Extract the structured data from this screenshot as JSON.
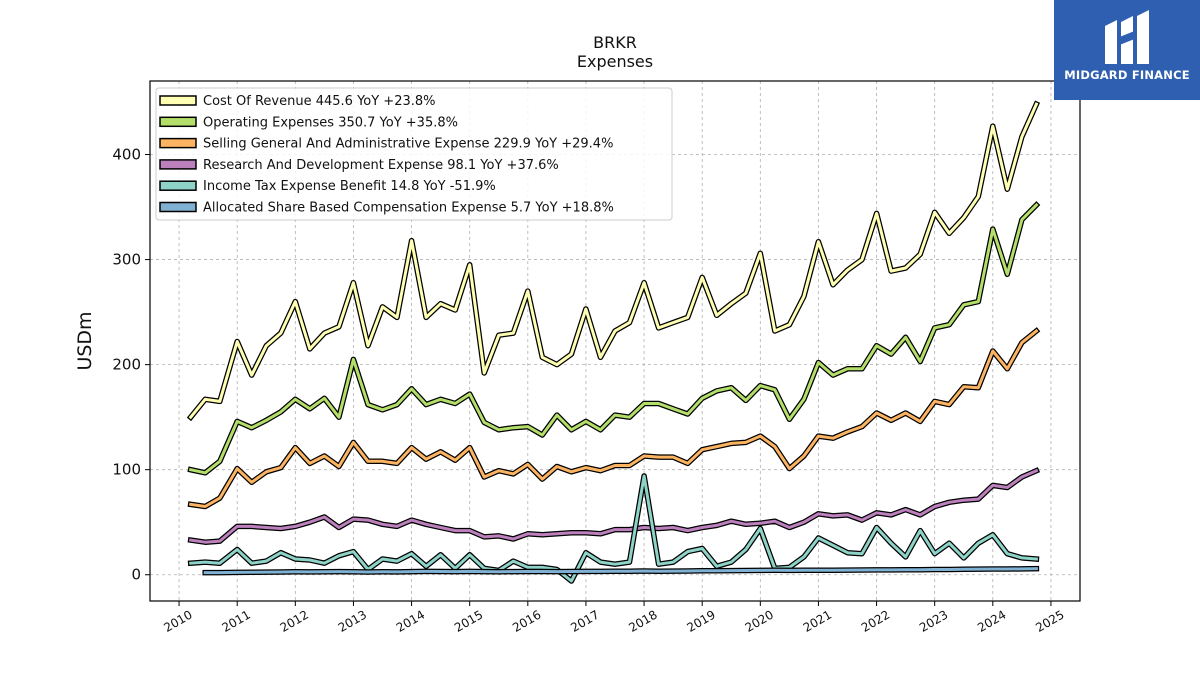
{
  "brand": {
    "name": "MIDGARD FINANCE",
    "color": "#2f5fb0"
  },
  "chart_data": {
    "type": "line",
    "title": "BRKR",
    "subtitle": "Expenses",
    "ylabel": "USDm",
    "xlabel": "",
    "xlim": [
      2009.5,
      2025.5
    ],
    "ylim": [
      -25,
      470
    ],
    "x_ticks": [
      "2010",
      "2011",
      "2012",
      "2013",
      "2014",
      "2015",
      "2016",
      "2017",
      "2018",
      "2019",
      "2020",
      "2021",
      "2022",
      "2023",
      "2024",
      "2025"
    ],
    "y_ticks": [
      "0",
      "100",
      "200",
      "300",
      "400"
    ],
    "grid": true,
    "legend_position": "top-left",
    "series": [
      {
        "name": "Cost Of Revenue",
        "legend": "Cost Of Revenue  445.6 YoY +23.8%",
        "color": "#ffffb3",
        "x": [
          2010.2,
          2010.45,
          2010.7,
          2011.0,
          2011.25,
          2011.5,
          2011.75,
          2012.0,
          2012.25,
          2012.5,
          2012.75,
          2013.0,
          2013.25,
          2013.5,
          2013.75,
          2014.0,
          2014.25,
          2014.5,
          2014.75,
          2015.0,
          2015.25,
          2015.5,
          2015.75,
          2016.0,
          2016.25,
          2016.5,
          2016.75,
          2017.0,
          2017.25,
          2017.5,
          2017.75,
          2018.0,
          2018.25,
          2018.5,
          2018.75,
          2019.0,
          2019.25,
          2019.5,
          2019.75,
          2020.0,
          2020.25,
          2020.5,
          2020.75,
          2021.0,
          2021.25,
          2021.5,
          2021.75,
          2022.0,
          2022.25,
          2022.5,
          2022.75,
          2023.0,
          2023.25,
          2023.5,
          2023.75,
          2024.0,
          2024.25,
          2024.5,
          2024.75
        ],
        "values": [
          150,
          167,
          165,
          222,
          190,
          218,
          230,
          260,
          215,
          230,
          236,
          278,
          218,
          255,
          245,
          318,
          245,
          258,
          252,
          295,
          192,
          228,
          230,
          270,
          207,
          200,
          210,
          253,
          207,
          232,
          240,
          278,
          235,
          240,
          245,
          283,
          247,
          258,
          268,
          306,
          232,
          238,
          265,
          317,
          276,
          290,
          300,
          344,
          289,
          292,
          305,
          345,
          325,
          340,
          360,
          427,
          367,
          417,
          448
        ]
      },
      {
        "name": "Operating Expenses",
        "legend": "Operating Expenses  350.7 YoY +35.8%",
        "color": "#b3de69",
        "x": [
          2010.2,
          2010.45,
          2010.7,
          2011.0,
          2011.25,
          2011.5,
          2011.75,
          2012.0,
          2012.25,
          2012.5,
          2012.75,
          2013.0,
          2013.25,
          2013.5,
          2013.75,
          2014.0,
          2014.25,
          2014.5,
          2014.75,
          2015.0,
          2015.25,
          2015.5,
          2015.75,
          2016.0,
          2016.25,
          2016.5,
          2016.75,
          2017.0,
          2017.25,
          2017.5,
          2017.75,
          2018.0,
          2018.25,
          2018.5,
          2018.75,
          2019.0,
          2019.25,
          2019.5,
          2019.75,
          2020.0,
          2020.25,
          2020.5,
          2020.75,
          2021.0,
          2021.25,
          2021.5,
          2021.75,
          2022.0,
          2022.25,
          2022.5,
          2022.75,
          2023.0,
          2023.25,
          2023.5,
          2023.75,
          2024.0,
          2024.25,
          2024.5,
          2024.75
        ],
        "values": [
          100,
          97,
          108,
          146,
          140,
          147,
          155,
          167,
          158,
          168,
          150,
          205,
          162,
          157,
          162,
          177,
          162,
          167,
          163,
          172,
          145,
          138,
          140,
          141,
          133,
          152,
          138,
          146,
          138,
          152,
          150,
          163,
          163,
          158,
          153,
          168,
          175,
          178,
          166,
          180,
          176,
          148,
          167,
          202,
          190,
          196,
          196,
          218,
          210,
          226,
          203,
          235,
          238,
          257,
          260,
          329,
          286,
          338,
          352
        ]
      },
      {
        "name": "Selling General And Administrative Expense",
        "legend": "Selling General And Administrative Expense  229.9 YoY +29.4%",
        "color": "#fdb462",
        "x": [
          2010.2,
          2010.45,
          2010.7,
          2011.0,
          2011.25,
          2011.5,
          2011.75,
          2012.0,
          2012.25,
          2012.5,
          2012.75,
          2013.0,
          2013.25,
          2013.5,
          2013.75,
          2014.0,
          2014.25,
          2014.5,
          2014.75,
          2015.0,
          2015.25,
          2015.5,
          2015.75,
          2016.0,
          2016.25,
          2016.5,
          2016.75,
          2017.0,
          2017.25,
          2017.5,
          2017.75,
          2018.0,
          2018.25,
          2018.5,
          2018.75,
          2019.0,
          2019.25,
          2019.5,
          2019.75,
          2020.0,
          2020.25,
          2020.5,
          2020.75,
          2021.0,
          2021.25,
          2021.5,
          2021.75,
          2022.0,
          2022.25,
          2022.5,
          2022.75,
          2023.0,
          2023.25,
          2023.5,
          2023.75,
          2024.0,
          2024.25,
          2024.5,
          2024.75
        ],
        "values": [
          67,
          65,
          73,
          101,
          88,
          98,
          102,
          121,
          106,
          113,
          103,
          126,
          108,
          108,
          106,
          121,
          110,
          117,
          109,
          121,
          93,
          99,
          96,
          105,
          91,
          103,
          98,
          102,
          99,
          104,
          104,
          113,
          112,
          112,
          106,
          119,
          122,
          125,
          126,
          132,
          122,
          101,
          113,
          132,
          130,
          136,
          141,
          154,
          147,
          154,
          146,
          165,
          162,
          179,
          178,
          213,
          196,
          221,
          232
        ]
      },
      {
        "name": "Research And Development Expense",
        "legend": "Research And Development Expense  98.1 YoY +37.6%",
        "color": "#bc80bd",
        "x": [
          2010.2,
          2010.45,
          2010.7,
          2011.0,
          2011.25,
          2011.5,
          2011.75,
          2012.0,
          2012.25,
          2012.5,
          2012.75,
          2013.0,
          2013.25,
          2013.5,
          2013.75,
          2014.0,
          2014.25,
          2014.5,
          2014.75,
          2015.0,
          2015.25,
          2015.5,
          2015.75,
          2016.0,
          2016.25,
          2016.5,
          2016.75,
          2017.0,
          2017.25,
          2017.5,
          2017.75,
          2018.0,
          2018.25,
          2018.5,
          2018.75,
          2019.0,
          2019.25,
          2019.5,
          2019.75,
          2020.0,
          2020.25,
          2020.5,
          2020.75,
          2021.0,
          2021.25,
          2021.5,
          2021.75,
          2022.0,
          2022.25,
          2022.5,
          2022.75,
          2023.0,
          2023.25,
          2023.5,
          2023.75,
          2024.0,
          2024.25,
          2024.5,
          2024.75
        ],
        "values": [
          33,
          31,
          32,
          46,
          46,
          45,
          44,
          46,
          50,
          55,
          45,
          53,
          52,
          48,
          46,
          52,
          48,
          45,
          42,
          42,
          36,
          37,
          34,
          39,
          38,
          39,
          40,
          40,
          39,
          43,
          43,
          45,
          44,
          45,
          42,
          45,
          47,
          51,
          48,
          49,
          51,
          45,
          50,
          58,
          56,
          57,
          52,
          59,
          57,
          62,
          57,
          65,
          69,
          71,
          72,
          85,
          83,
          93,
          99
        ]
      },
      {
        "name": "Income Tax Expense Benefit",
        "legend": "Income Tax Expense Benefit  14.8 YoY -51.9%",
        "color": "#8dd3c7",
        "x": [
          2010.2,
          2010.45,
          2010.7,
          2011.0,
          2011.25,
          2011.5,
          2011.75,
          2012.0,
          2012.25,
          2012.5,
          2012.75,
          2013.0,
          2013.25,
          2013.5,
          2013.75,
          2014.0,
          2014.25,
          2014.5,
          2014.75,
          2015.0,
          2015.25,
          2015.5,
          2015.75,
          2016.0,
          2016.25,
          2016.5,
          2016.75,
          2017.0,
          2017.25,
          2017.5,
          2017.75,
          2018.0,
          2018.25,
          2018.5,
          2018.75,
          2019.0,
          2019.25,
          2019.5,
          2019.75,
          2020.0,
          2020.25,
          2020.5,
          2020.75,
          2021.0,
          2021.25,
          2021.5,
          2021.75,
          2022.0,
          2022.25,
          2022.5,
          2022.75,
          2023.0,
          2023.25,
          2023.5,
          2023.75,
          2024.0,
          2024.25,
          2024.5,
          2024.75
        ],
        "values": [
          11,
          12,
          11,
          24,
          11,
          13,
          21,
          15,
          14,
          11,
          18,
          22,
          5,
          15,
          13,
          20,
          8,
          19,
          6,
          19,
          6,
          4,
          13,
          7,
          7,
          5,
          -6,
          21,
          12,
          10,
          12,
          94,
          10,
          12,
          22,
          25,
          8,
          12,
          24,
          44,
          6,
          7,
          17,
          35,
          28,
          21,
          20,
          45,
          30,
          17,
          42,
          20,
          30,
          16,
          30,
          38,
          20,
          16,
          15
        ]
      },
      {
        "name": "Allocated Share Based Compensation Expense",
        "legend": "Allocated Share Based Compensation Expense  5.7 YoY +18.8%",
        "color": "#80b1d3",
        "x": [
          2010.45,
          2010.7,
          2011.0,
          2011.25,
          2011.5,
          2011.75,
          2012.0,
          2012.25,
          2012.5,
          2012.75,
          2013.0,
          2013.25,
          2013.5,
          2013.75,
          2014.0,
          2014.25,
          2014.5,
          2014.75,
          2015.0,
          2015.25,
          2015.5,
          2015.75,
          2016.0,
          2016.25,
          2016.5,
          2016.75,
          2017.0,
          2017.25,
          2017.5,
          2017.75,
          2018.0,
          2018.25,
          2018.5,
          2018.75,
          2019.0,
          2019.25,
          2019.5,
          2019.75,
          2020.0,
          2020.25,
          2020.5,
          2020.75,
          2021.0,
          2021.25,
          2021.5,
          2021.75,
          2022.0,
          2022.25,
          2022.5,
          2022.75,
          2023.0,
          2023.25,
          2023.5,
          2023.75,
          2024.0,
          2024.25,
          2024.5,
          2024.75
        ],
        "values": [
          2,
          2,
          2.2,
          2.3,
          2.5,
          2.6,
          2.8,
          2.7,
          2.9,
          3,
          2.9,
          2.6,
          2.8,
          2.7,
          3,
          3.2,
          3.1,
          3,
          3.2,
          3,
          2.9,
          3,
          3.1,
          3.1,
          3,
          3.1,
          3.2,
          3.2,
          3.3,
          3.4,
          3.6,
          3.4,
          3.5,
          3.6,
          3.8,
          3.8,
          3.9,
          4,
          4.1,
          4.2,
          4.1,
          4.2,
          4.3,
          4.3,
          4.4,
          4.5,
          4.6,
          4.6,
          4.7,
          4.8,
          5,
          5,
          5.2,
          5.4,
          5.5,
          5.5,
          5.6,
          5.7
        ]
      }
    ]
  }
}
